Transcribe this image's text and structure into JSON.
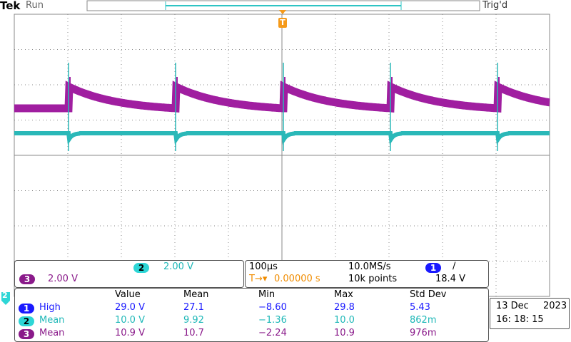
{
  "header": {
    "brand": "Tek",
    "state": "Run",
    "trigger_status": "Trig'd",
    "trigger_marker": "T"
  },
  "ground_marker": "2",
  "channels": [
    {
      "number": "2",
      "scale": "2.00 V"
    },
    {
      "number": "3",
      "scale": "2.00 V"
    }
  ],
  "timebase": {
    "scale": "100µs",
    "sample_rate": "10.0MS/s",
    "position": "0.00000 s",
    "record": "10k points",
    "trigger_channel": "1",
    "trigger_level": "18.4 V"
  },
  "measurements": {
    "columns": [
      "Value",
      "Mean",
      "Min",
      "Max",
      "Std Dev"
    ],
    "rows": [
      {
        "channel": "1",
        "name": "High",
        "values": [
          "29.0 V",
          "27.1",
          "−8.60",
          "29.8",
          "5.43"
        ]
      },
      {
        "channel": "2",
        "name": "Mean",
        "values": [
          "10.0 V",
          "9.92",
          "−1.36",
          "10.0",
          "862m"
        ]
      },
      {
        "channel": "3",
        "name": "Mean",
        "values": [
          "10.9 V",
          "10.7",
          "−2.24",
          "10.9",
          "976m"
        ]
      }
    ]
  },
  "date": {
    "date": "13 Dec",
    "year": "2023",
    "time": "16: 18: 15"
  }
}
